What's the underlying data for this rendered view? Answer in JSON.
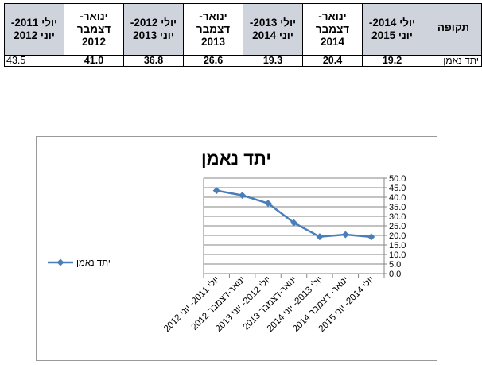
{
  "table": {
    "row_header": "תקופה",
    "columns": [
      "יולי 2014-\nיוני 2015",
      "ינואר-\nדצמבר\n2014",
      "יולי 2013-\nיוני 2014",
      "ינואר-\nדצמבר\n2013",
      "יולי 2012-\nיוני 2013",
      "ינואר-\nדצמבר\n2012",
      "יולי 2011-\nיוני 2012"
    ],
    "row_label": "יתד נאמן",
    "values": [
      "19.2",
      "20.4",
      "19.3",
      "26.6",
      "36.8",
      "41.0",
      "43.5"
    ]
  },
  "chart_data": {
    "type": "line",
    "title": "יתד נאמן",
    "categories": [
      "יולי 2011- יוני 2012",
      "ינואר-דצמבר 2012",
      "יולי 2012- יוני 2013",
      "ינואר-דצמבר 2013",
      "יולי 2013- יוני 2014",
      "ינואר- דצמבר 2014",
      "יולי 2014- יוני 2015"
    ],
    "series": [
      {
        "name": "יתד נאמן",
        "values": [
          43.5,
          41.0,
          36.8,
          26.6,
          19.3,
          20.4,
          19.2
        ]
      }
    ],
    "y_ticks": [
      "0.0",
      "5.0",
      "10.0",
      "15.0",
      "20.0",
      "25.0",
      "30.0",
      "35.0",
      "40.0",
      "45.0",
      "50.0"
    ],
    "ylim": [
      0,
      50
    ],
    "y_axis_side": "right",
    "grid": true,
    "legend_position": "left",
    "colors": {
      "series": "#4a7ebb",
      "grid": "#868686",
      "axis": "#868686",
      "text": "#000000"
    }
  }
}
